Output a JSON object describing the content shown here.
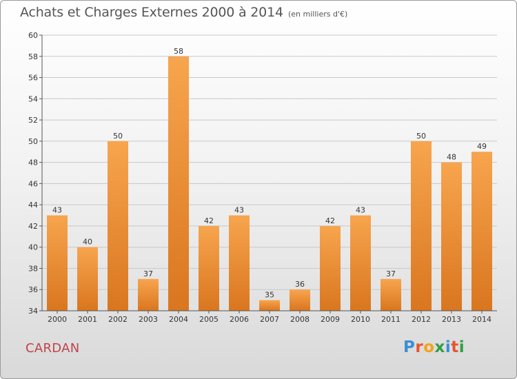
{
  "title": "Achats et Charges Externes 2000 à 2014",
  "unit_note": "(en milliers d'€)",
  "commune": "CARDAN",
  "logo": {
    "text": "Proxiti",
    "letters": [
      {
        "char": "P",
        "color": "#3a8fd6"
      },
      {
        "char": "r",
        "color": "#e8532d"
      },
      {
        "char": "o",
        "color": "#f2a21c"
      },
      {
        "char": "x",
        "color": "#2f9e44"
      },
      {
        "char": "i",
        "color": "#3a8fd6"
      },
      {
        "char": "t",
        "color": "#e8532d"
      },
      {
        "char": "i",
        "color": "#2f9e44"
      }
    ]
  },
  "colors": {
    "bar_top": "#f7a54e",
    "bar_bottom": "#d9761f",
    "grid": "#c8c8c8",
    "title": "#555555",
    "commune": "#c0424a"
  },
  "chart_data": {
    "type": "bar",
    "title": "Achats et Charges Externes 2000 à 2014",
    "categories": [
      "2000",
      "2001",
      "2002",
      "2003",
      "2004",
      "2005",
      "2006",
      "2007",
      "2008",
      "2009",
      "2010",
      "2011",
      "2012",
      "2013",
      "2014"
    ],
    "values": [
      43,
      40,
      50,
      37,
      58,
      42,
      43,
      35,
      36,
      42,
      43,
      37,
      50,
      48,
      49
    ],
    "xlabel": "",
    "ylabel": "",
    "ylim": [
      34,
      60
    ],
    "yticks": [
      34,
      36,
      38,
      40,
      42,
      44,
      46,
      48,
      50,
      52,
      54,
      56,
      58,
      60
    ],
    "grid": true,
    "legend": "none"
  }
}
